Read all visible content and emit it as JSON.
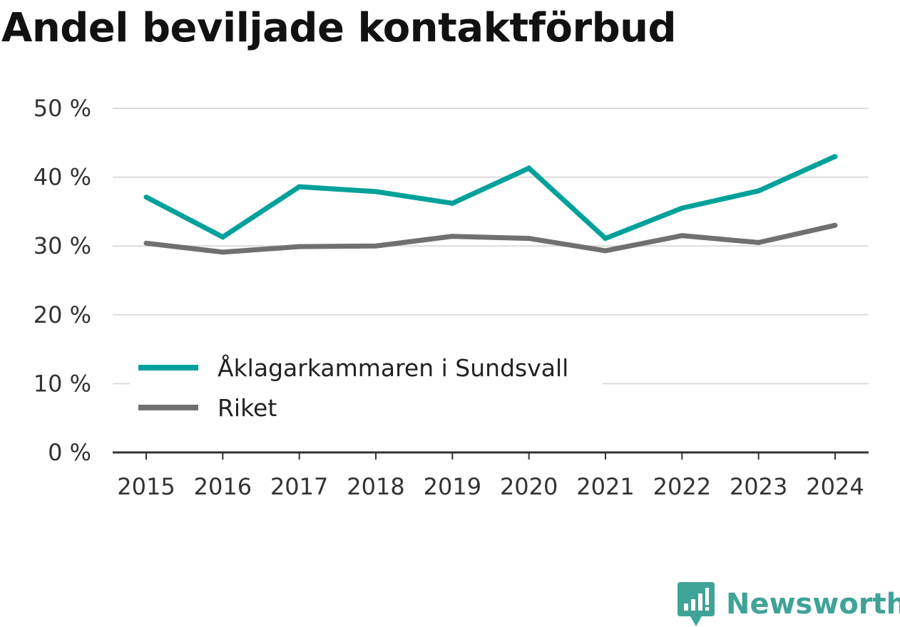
{
  "chart_data": {
    "type": "line",
    "title": "Andel beviljade kontaktförbud",
    "x": [
      "2015",
      "2016",
      "2017",
      "2018",
      "2019",
      "2020",
      "2021",
      "2022",
      "2023",
      "2024"
    ],
    "series": [
      {
        "name": "Åklagarkammaren i Sundsvall",
        "color": "#00a19a",
        "values": [
          37.1,
          31.3,
          38.6,
          37.9,
          36.2,
          41.3,
          31.1,
          35.5,
          38.0,
          43.0
        ]
      },
      {
        "name": "Riket",
        "color": "#707070",
        "values": [
          30.4,
          29.1,
          29.9,
          30.0,
          31.4,
          31.1,
          29.3,
          31.5,
          30.5,
          33.0
        ]
      }
    ],
    "y_ticks": [
      0,
      10,
      20,
      30,
      40,
      50
    ],
    "y_tick_suffix": " %",
    "ylim": [
      0,
      50
    ],
    "grid": true,
    "legend_position": "bottom-left"
  },
  "branding": {
    "name": "Newsworthy",
    "color": "#3fa397"
  }
}
